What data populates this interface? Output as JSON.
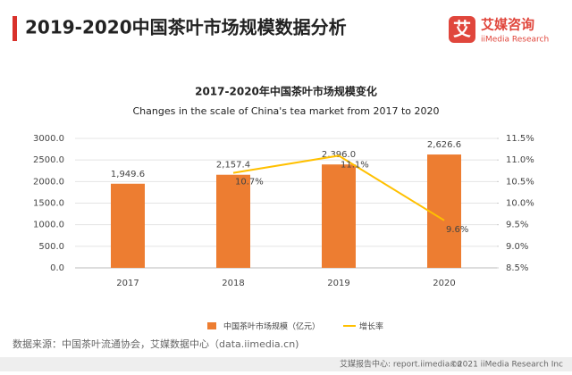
{
  "header": {
    "title": "2019-2020中国茶叶市场规模数据分析"
  },
  "logo": {
    "mark": "艾",
    "name": "艾媒咨询",
    "sub": "iiMedia Research"
  },
  "chart_data": {
    "type": "combo",
    "title": "2017-2020年中国茶叶市场规模变化",
    "subtitle": "Changes in the scale of China's tea market from 2017 to 2020",
    "categories": [
      "2017",
      "2018",
      "2019",
      "2020"
    ],
    "series": [
      {
        "name": "中国茶叶市场规模（亿元）",
        "type": "bar",
        "color": "#ed7d31",
        "values": [
          1949.6,
          2157.4,
          2396.0,
          2626.6
        ],
        "value_labels": [
          "1,949.6",
          "2,157.4",
          "2,396.0",
          "2,626.6"
        ]
      },
      {
        "name": "增长率",
        "type": "line",
        "axis": "y2",
        "color": "#ffc000",
        "values": [
          null,
          10.7,
          11.1,
          9.6
        ],
        "value_labels": [
          null,
          "10.7%",
          "11.1%",
          "9.6%"
        ]
      }
    ],
    "ylim": [
      0,
      3000
    ],
    "yticks": [
      {
        "value": 0,
        "label": "0.0"
      },
      {
        "value": 500,
        "label": "500.0"
      },
      {
        "value": 1000,
        "label": "1000.0"
      },
      {
        "value": 1500,
        "label": "1500.0"
      },
      {
        "value": 2000,
        "label": "2000.0"
      },
      {
        "value": 2500,
        "label": "2500.0"
      },
      {
        "value": 3000,
        "label": "3000.0"
      }
    ],
    "y2lim": [
      8.5,
      11.5
    ],
    "y2ticks": [
      {
        "value": 8.5,
        "label": "8.5%"
      },
      {
        "value": 9.0,
        "label": "9.0%"
      },
      {
        "value": 9.5,
        "label": "9.5%"
      },
      {
        "value": 10.0,
        "label": "10.0%"
      },
      {
        "value": 10.5,
        "label": "10.5%"
      },
      {
        "value": 11.0,
        "label": "11.0%"
      },
      {
        "value": 11.5,
        "label": "11.5%"
      }
    ],
    "grid": true
  },
  "source": "数据来源：中国茶叶流通协会，艾媒数据中心（data.iimedia.cn)",
  "footer": {
    "left": "艾媒报告中心: report.iimedia.cn",
    "right": "©2021  iiMedia Research  Inc"
  }
}
